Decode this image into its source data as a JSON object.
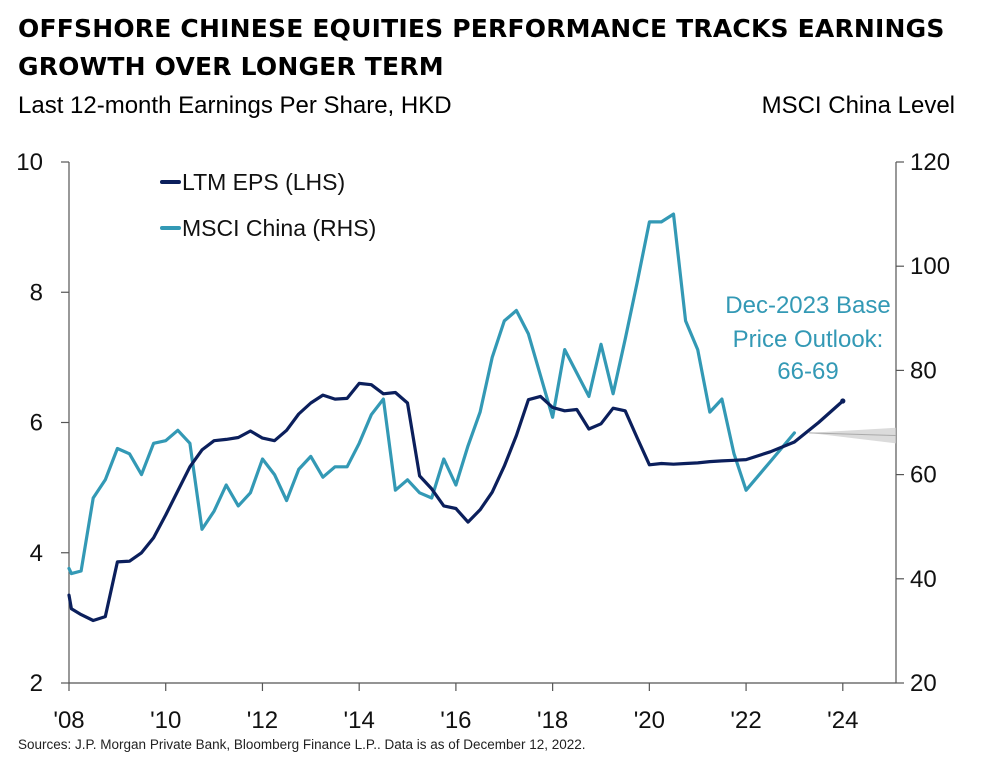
{
  "chart_data": {
    "type": "line",
    "title_lines": [
      "OFFSHORE CHINESE EQUITIES PERFORMANCE TRACKS EARNINGS",
      "GROWTH OVER LONGER TERM"
    ],
    "ylabel_left": "Last 12-month Earnings Per Share, HKD",
    "ylabel_right": "MSCI China Level",
    "x_range": [
      2008,
      2025.1
    ],
    "y_left_range": [
      2,
      10
    ],
    "y_right_range": [
      20,
      120
    ],
    "x_ticks": [
      {
        "value": 2008,
        "label": "'08"
      },
      {
        "value": 2010,
        "label": "'10"
      },
      {
        "value": 2012,
        "label": "'12"
      },
      {
        "value": 2014,
        "label": "'14"
      },
      {
        "value": 2016,
        "label": "'16"
      },
      {
        "value": 2018,
        "label": "'18"
      },
      {
        "value": 2020,
        "label": "'20"
      },
      {
        "value": 2022,
        "label": "'22"
      },
      {
        "value": 2024,
        "label": "'24"
      }
    ],
    "y_left_ticks": [
      {
        "value": 2,
        "label": "2"
      },
      {
        "value": 4,
        "label": "4"
      },
      {
        "value": 6,
        "label": "6"
      },
      {
        "value": 8,
        "label": "8"
      },
      {
        "value": 10,
        "label": "10"
      }
    ],
    "y_right_ticks": [
      {
        "value": 20,
        "label": "20"
      },
      {
        "value": 40,
        "label": "40"
      },
      {
        "value": 60,
        "label": "60"
      },
      {
        "value": 80,
        "label": "80"
      },
      {
        "value": 100,
        "label": "100"
      },
      {
        "value": 120,
        "label": "120"
      }
    ],
    "grid": false,
    "legend_position": "top-left",
    "colors": {
      "eps": "#0b1f5c",
      "msci": "#3399b5",
      "band": "#cfcfcf"
    },
    "series": [
      {
        "name": "LTM EPS (LHS)",
        "axis": "left",
        "x": [
          2008.0,
          2008.05,
          2008.25,
          2008.5,
          2008.75,
          2009.0,
          2009.25,
          2009.5,
          2009.75,
          2010.0,
          2010.25,
          2010.5,
          2010.75,
          2011.0,
          2011.25,
          2011.5,
          2011.75,
          2012.0,
          2012.25,
          2012.5,
          2012.75,
          2013.0,
          2013.25,
          2013.5,
          2013.75,
          2014.0,
          2014.25,
          2014.5,
          2014.75,
          2015.0,
          2015.25,
          2015.5,
          2015.75,
          2016.0,
          2016.25,
          2016.5,
          2016.75,
          2017.0,
          2017.25,
          2017.5,
          2017.75,
          2018.0,
          2018.25,
          2018.5,
          2018.75,
          2019.0,
          2019.25,
          2019.5,
          2019.75,
          2020.0,
          2020.25,
          2020.5,
          2020.75,
          2021.0,
          2021.25,
          2021.5,
          2021.75,
          2022.0,
          2022.5,
          2023.0,
          2023.5,
          2024.0
        ],
        "values": [
          3.35,
          3.14,
          3.05,
          2.96,
          3.02,
          3.86,
          3.87,
          4.0,
          4.23,
          4.58,
          4.95,
          5.32,
          5.58,
          5.72,
          5.74,
          5.77,
          5.87,
          5.76,
          5.72,
          5.88,
          6.13,
          6.3,
          6.42,
          6.36,
          6.37,
          6.6,
          6.58,
          6.44,
          6.46,
          6.3,
          5.18,
          4.98,
          4.72,
          4.68,
          4.47,
          4.66,
          4.93,
          5.33,
          5.8,
          6.35,
          6.4,
          6.23,
          6.18,
          6.2,
          5.9,
          5.98,
          6.22,
          6.18,
          5.76,
          5.35,
          5.37,
          5.36,
          5.37,
          5.38,
          5.4,
          5.41,
          5.42,
          5.43,
          5.55,
          5.7,
          6.0,
          6.33
        ]
      },
      {
        "name": "MSCI China (RHS)",
        "axis": "right",
        "x": [
          2008.0,
          2008.05,
          2008.25,
          2008.5,
          2008.75,
          2009.0,
          2009.25,
          2009.5,
          2009.75,
          2010.0,
          2010.25,
          2010.5,
          2010.75,
          2011.0,
          2011.25,
          2011.5,
          2011.75,
          2012.0,
          2012.25,
          2012.5,
          2012.75,
          2013.0,
          2013.25,
          2013.5,
          2013.75,
          2014.0,
          2014.25,
          2014.5,
          2014.75,
          2015.0,
          2015.25,
          2015.5,
          2015.75,
          2016.0,
          2016.25,
          2016.5,
          2016.75,
          2017.0,
          2017.25,
          2017.5,
          2017.75,
          2018.0,
          2018.25,
          2018.5,
          2018.75,
          2019.0,
          2019.25,
          2019.5,
          2019.75,
          2020.0,
          2020.25,
          2020.5,
          2020.75,
          2021.0,
          2021.25,
          2021.5,
          2021.75,
          2022.0,
          2022.5,
          2023.0
        ],
        "values": [
          42,
          41,
          41.5,
          55.5,
          59,
          65,
          64,
          60,
          66,
          66.5,
          68.5,
          66,
          49.5,
          53,
          58,
          54,
          56.5,
          63,
          60,
          55,
          61,
          63.5,
          59.5,
          61.5,
          61.5,
          66,
          71.5,
          74.5,
          57,
          59,
          56.5,
          55.5,
          63,
          58,
          65.5,
          72,
          82.5,
          89.5,
          91.5,
          87,
          79,
          71,
          84,
          79.5,
          75,
          85,
          75.5,
          86,
          97,
          108.5,
          108.5,
          110,
          89.5,
          84,
          72,
          74.5,
          64,
          57,
          62.5,
          68
        ]
      }
    ],
    "forecast_band": {
      "x": [
        2023.3,
        2025.1
      ],
      "start": 68,
      "end": [
        66,
        69
      ],
      "axis": "right"
    },
    "annotation": {
      "lines": [
        "Dec-2023 Base",
        "Price Outlook:",
        "66-69"
      ]
    },
    "source": "Sources: J.P. Morgan Private Bank, Bloomberg Finance L.P.. Data is as of December 12, 2022."
  }
}
